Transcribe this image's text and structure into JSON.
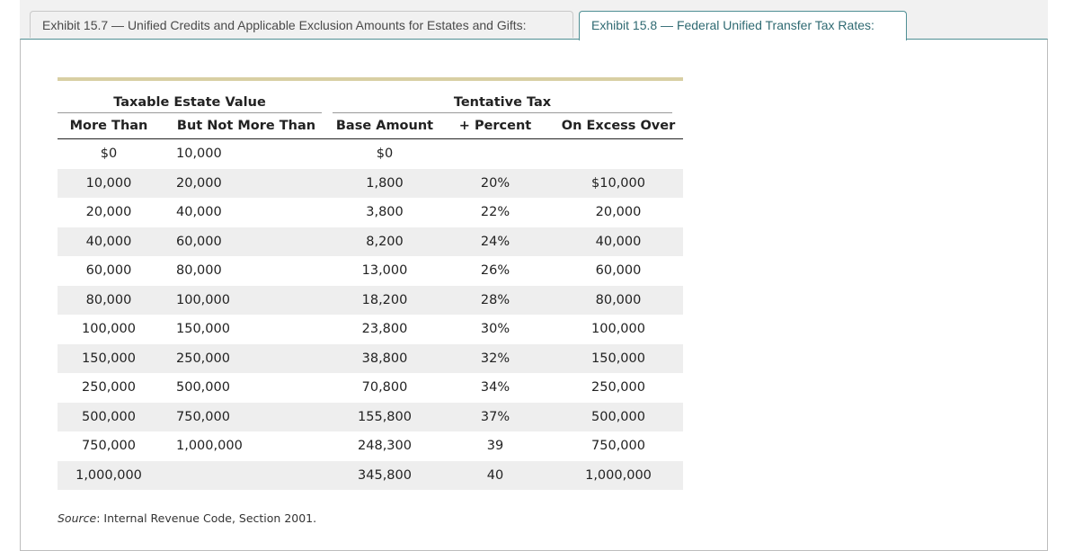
{
  "tabs": [
    {
      "label": "Exhibit 15.7 — Unified Credits and Applicable Exclusion Amounts for Estates and Gifts:"
    },
    {
      "label": "Exhibit 15.8 — Federal Unified Transfer Tax Rates:"
    }
  ],
  "table": {
    "group_headers": {
      "taxable_estate": "Taxable Estate Value",
      "tentative_tax": "Tentative Tax"
    },
    "columns": {
      "more_than": "More Than",
      "not_more_than": "But Not More Than",
      "base_amount": "Base Amount",
      "percent": "+ Percent",
      "excess_over": "On Excess Over"
    },
    "rows": [
      [
        "$0",
        "10,000",
        "$0",
        "",
        ""
      ],
      [
        "10,000",
        "20,000",
        "1,800",
        "20%",
        "$10,000"
      ],
      [
        "20,000",
        "40,000",
        "3,800",
        "22%",
        "20,000"
      ],
      [
        "40,000",
        "60,000",
        "8,200",
        "24%",
        "40,000"
      ],
      [
        "60,000",
        "80,000",
        "13,000",
        "26%",
        "60,000"
      ],
      [
        "80,000",
        "100,000",
        "18,200",
        "28%",
        "80,000"
      ],
      [
        "100,000",
        "150,000",
        "23,800",
        "30%",
        "100,000"
      ],
      [
        "150,000",
        "250,000",
        "38,800",
        "32%",
        "150,000"
      ],
      [
        "250,000",
        "500,000",
        "70,800",
        "34%",
        "250,000"
      ],
      [
        "500,000",
        "750,000",
        "155,800",
        "37%",
        "500,000"
      ],
      [
        "750,000",
        "1,000,000",
        "248,300",
        "39",
        "750,000"
      ],
      [
        "1,000,000",
        "",
        "345,800",
        "40",
        "1,000,000"
      ]
    ]
  },
  "source": {
    "label": "Source",
    "text": ": Internal Revenue Code, Section 2001."
  }
}
